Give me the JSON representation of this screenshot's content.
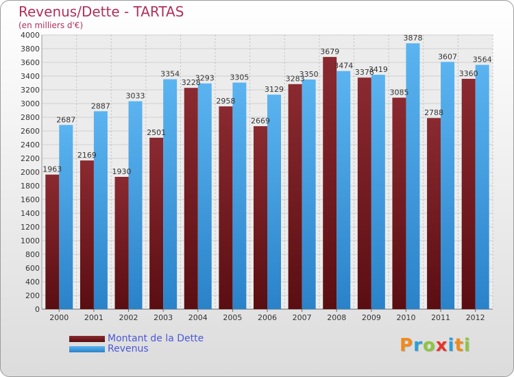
{
  "title": "Revenus/Dette - TARTAS",
  "subtitle": "(en milliers d'€)",
  "brand": "Proxiti",
  "colors": {
    "dette": "#7a1f24",
    "revenus": "#3f9fe3",
    "title": "#b0305a",
    "legend_text": "#4a57d8"
  },
  "chart_data": {
    "type": "bar",
    "title": "Revenus/Dette - TARTAS",
    "subtitle": "(en milliers d'€)",
    "categories": [
      "2000",
      "2001",
      "2002",
      "2003",
      "2004",
      "2005",
      "2006",
      "2007",
      "2008",
      "2009",
      "2010",
      "2011",
      "2012"
    ],
    "series": [
      {
        "name": "Montant de la Dette",
        "values": [
          1963,
          2169,
          1930,
          2501,
          3228,
          2958,
          2669,
          3283,
          3679,
          3378,
          3085,
          2788,
          3360
        ]
      },
      {
        "name": "Revenus",
        "values": [
          2687,
          2887,
          3033,
          3354,
          3293,
          3305,
          3129,
          3350,
          3474,
          3419,
          3878,
          3607,
          3564
        ]
      }
    ],
    "ylim": [
      0,
      4000
    ],
    "yticks": [
      0,
      200,
      400,
      600,
      800,
      1000,
      1200,
      1400,
      1600,
      1800,
      2000,
      2200,
      2400,
      2600,
      2800,
      3000,
      3200,
      3400,
      3600,
      3800,
      4000
    ],
    "grid": true,
    "legend": "bottom-left"
  }
}
